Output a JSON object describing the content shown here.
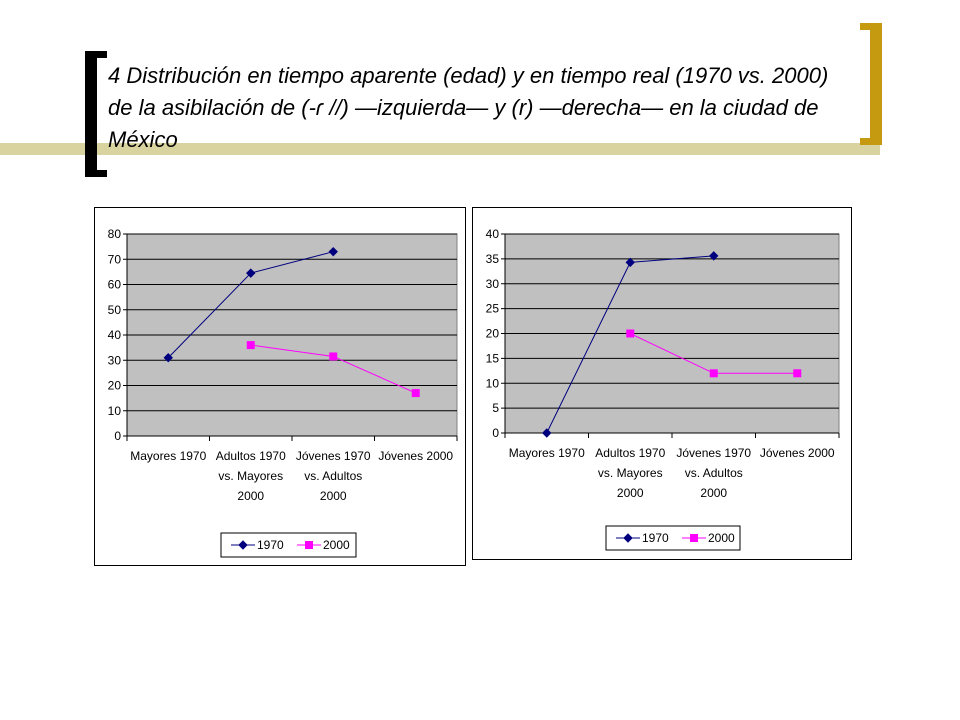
{
  "slide": {
    "title": "4 Distribución en tiempo aparente (edad) y en tiempo real (1970 vs. 2000) de la asibilación de (-ɾ //) —izquierda— y (r) —derecha— en la ciudad de México"
  },
  "chart_data": [
    {
      "type": "line",
      "categories": [
        [
          "Mayores 1970"
        ],
        [
          "Adultos 1970",
          "vs. Mayores",
          "2000"
        ],
        [
          "Jóvenes 1970",
          "vs. Adultos",
          "2000"
        ],
        [
          "Jóvenes 2000"
        ]
      ],
      "yticks": [
        "0",
        "10",
        "20",
        "30",
        "40",
        "50",
        "60",
        "70",
        "80"
      ],
      "ylim": [
        0,
        80
      ],
      "grid": true,
      "legend_position": "bottom",
      "series": [
        {
          "name": "1970",
          "color": "#00007f",
          "marker": "diamond",
          "values": [
            31,
            64.5,
            73,
            null
          ]
        },
        {
          "name": "2000",
          "color": "#ff00ff",
          "marker": "square",
          "values": [
            null,
            36,
            31.5,
            17
          ]
        }
      ]
    },
    {
      "type": "line",
      "categories": [
        [
          "Mayores 1970"
        ],
        [
          "Adultos 1970",
          "vs. Mayores",
          "2000"
        ],
        [
          "Jóvenes 1970",
          "vs. Adultos",
          "2000"
        ],
        [
          "Jóvenes 2000"
        ]
      ],
      "yticks": [
        "0",
        "5",
        "10",
        "15",
        "20",
        "25",
        "30",
        "35",
        "40"
      ],
      "ylim": [
        0,
        40
      ],
      "grid": true,
      "legend_position": "bottom",
      "series": [
        {
          "name": "1970",
          "color": "#00007f",
          "marker": "diamond",
          "values": [
            0,
            34.3,
            35.6,
            null
          ]
        },
        {
          "name": "2000",
          "color": "#ff00ff",
          "marker": "square",
          "values": [
            null,
            20,
            12,
            12
          ]
        }
      ]
    }
  ]
}
